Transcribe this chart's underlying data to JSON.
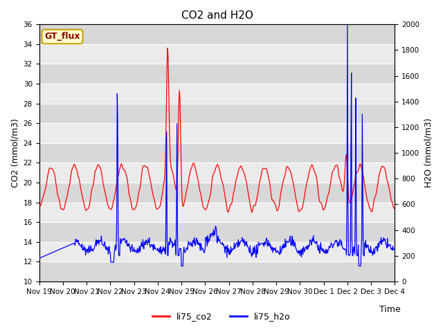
{
  "title": "CO2 and H2O",
  "xlabel": "Time",
  "ylabel_left": "CO2 (mmol/m3)",
  "ylabel_right": "H2O (mmol/m3)",
  "ylim_left": [
    10,
    36
  ],
  "ylim_right": [
    0,
    2000
  ],
  "yticks_left": [
    10,
    12,
    14,
    16,
    18,
    20,
    22,
    24,
    26,
    28,
    30,
    32,
    34,
    36
  ],
  "yticks_right": [
    0,
    200,
    400,
    600,
    800,
    1000,
    1200,
    1400,
    1600,
    1800,
    2000
  ],
  "xtick_labels": [
    "Nov 19",
    "Nov 20",
    "Nov 21",
    "Nov 22",
    "Nov 23",
    "Nov 24",
    "Nov 25",
    "Nov 26",
    "Nov 27",
    "Nov 28",
    "Nov 29",
    "Nov 30",
    "Dec 1",
    "Dec 2",
    "Dec 3",
    "Dec 4"
  ],
  "legend_labels": [
    "li75_co2",
    "li75_h2o"
  ],
  "legend_colors": [
    "red",
    "blue"
  ],
  "gt_flux_label": "GT_flux",
  "background_color": "#ffffff",
  "band_color_light": "#ebebeb",
  "band_color_dark": "#d8d8d8",
  "title_fontsize": 11,
  "label_fontsize": 9,
  "tick_fontsize": 7.5
}
